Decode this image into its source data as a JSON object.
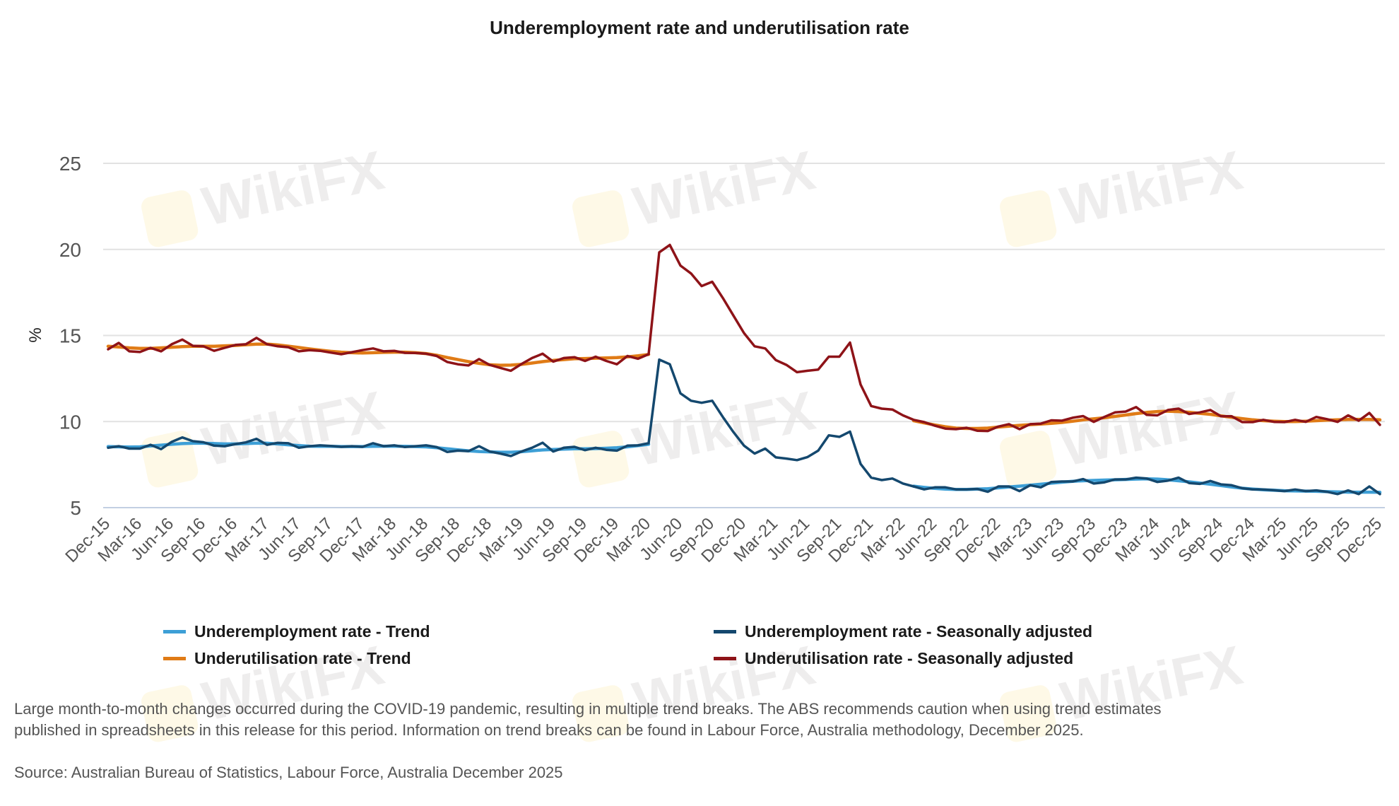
{
  "title": "Underemployment rate and underutilisation rate",
  "watermark": "WikiFX",
  "legend": [
    {
      "label": "Underemployment rate - Trend",
      "color": "#3d9fd6"
    },
    {
      "label": "Underemployment rate - Seasonally adjusted",
      "color": "#14486e"
    },
    {
      "label": "Underutilisation rate - Trend",
      "color": "#e07b16"
    },
    {
      "label": "Underutilisation rate - Seasonally adjusted",
      "color": "#8e1318"
    }
  ],
  "footnote": [
    "Large month-to-month changes occurred during the COVID-19 pandemic, resulting in multiple trend breaks. The ABS recommends caution when using trend estimates",
    "published in spreadsheets in this release for this period. Information on trend breaks can be found in Labour Force, Australia methodology, December 2025."
  ],
  "source": "Source: Australian Bureau of Statistics, Labour Force, Australia December 2025",
  "chart_data": {
    "type": "line",
    "title": "Underemployment rate and underutilisation rate",
    "xlabel": "",
    "ylabel": "%",
    "ylim": [
      5,
      25
    ],
    "yticks": [
      5,
      10,
      15,
      20,
      25
    ],
    "grid": true,
    "legend_position": "bottom",
    "x_tick_every": 3,
    "categories": [
      "Dec-15",
      "Jan-16",
      "Feb-16",
      "Mar-16",
      "Apr-16",
      "May-16",
      "Jun-16",
      "Jul-16",
      "Aug-16",
      "Sep-16",
      "Oct-16",
      "Nov-16",
      "Dec-16",
      "Jan-17",
      "Feb-17",
      "Mar-17",
      "Apr-17",
      "May-17",
      "Jun-17",
      "Jul-17",
      "Aug-17",
      "Sep-17",
      "Oct-17",
      "Nov-17",
      "Dec-17",
      "Jan-18",
      "Feb-18",
      "Mar-18",
      "Apr-18",
      "May-18",
      "Jun-18",
      "Jul-18",
      "Aug-18",
      "Sep-18",
      "Oct-18",
      "Nov-18",
      "Dec-18",
      "Jan-19",
      "Feb-19",
      "Mar-19",
      "Apr-19",
      "May-19",
      "Jun-19",
      "Jul-19",
      "Aug-19",
      "Sep-19",
      "Oct-19",
      "Nov-19",
      "Dec-19",
      "Jan-20",
      "Feb-20",
      "Mar-20",
      "Apr-20",
      "May-20",
      "Jun-20",
      "Jul-20",
      "Aug-20",
      "Sep-20",
      "Oct-20",
      "Nov-20",
      "Dec-20",
      "Jan-21",
      "Feb-21",
      "Mar-21",
      "Apr-21",
      "May-21",
      "Jun-21",
      "Jul-21",
      "Aug-21",
      "Sep-21",
      "Oct-21",
      "Nov-21",
      "Dec-21",
      "Jan-22",
      "Feb-22",
      "Mar-22",
      "Apr-22",
      "May-22",
      "Jun-22",
      "Jul-22",
      "Aug-22",
      "Sep-22",
      "Oct-22",
      "Nov-22",
      "Dec-22",
      "Jan-23",
      "Feb-23",
      "Mar-23",
      "Apr-23",
      "May-23",
      "Jun-23",
      "Jul-23",
      "Aug-23",
      "Sep-23",
      "Oct-23",
      "Nov-23",
      "Dec-23",
      "Jan-24",
      "Feb-24",
      "Mar-24",
      "Apr-24",
      "May-24",
      "Jun-24",
      "Jul-24",
      "Aug-24",
      "Sep-24",
      "Oct-24",
      "Nov-24",
      "Dec-24",
      "Jan-25",
      "Feb-25",
      "Mar-25",
      "Apr-25",
      "May-25",
      "Jun-25",
      "Jul-25",
      "Aug-25",
      "Sep-25",
      "Oct-25",
      "Nov-25",
      "Dec-25"
    ],
    "series": [
      {
        "name": "Underemployment rate - Trend",
        "color": "#3d9fd6",
        "values": [
          8.55,
          8.53,
          8.52,
          8.53,
          8.58,
          8.63,
          8.68,
          8.72,
          8.74,
          8.74,
          8.72,
          8.7,
          8.7,
          8.72,
          8.75,
          8.74,
          8.7,
          8.65,
          8.6,
          8.57,
          8.56,
          8.56,
          8.55,
          8.55,
          8.55,
          8.56,
          8.57,
          8.57,
          8.56,
          8.55,
          8.53,
          8.48,
          8.42,
          8.36,
          8.3,
          8.26,
          8.24,
          8.22,
          8.22,
          8.25,
          8.3,
          8.35,
          8.38,
          8.4,
          8.42,
          8.42,
          8.43,
          8.45,
          8.48,
          8.53,
          8.6,
          8.68,
          null,
          null,
          null,
          null,
          null,
          null,
          null,
          null,
          null,
          null,
          null,
          null,
          null,
          null,
          null,
          null,
          null,
          null,
          null,
          null,
          null,
          null,
          null,
          null,
          6.25,
          6.18,
          6.12,
          6.08,
          6.06,
          6.06,
          6.08,
          6.1,
          6.15,
          6.2,
          6.25,
          6.3,
          6.36,
          6.42,
          6.48,
          6.53,
          6.56,
          6.58,
          6.6,
          6.62,
          6.64,
          6.66,
          6.67,
          6.66,
          6.62,
          6.56,
          6.5,
          6.43,
          6.36,
          6.28,
          6.2,
          6.13,
          6.08,
          6.04,
          6.01,
          5.98,
          5.97,
          5.96,
          5.95,
          5.93,
          5.91,
          5.9,
          5.9,
          5.9,
          5.89
        ]
      },
      {
        "name": "Underutilisation rate - Trend",
        "color": "#e07b16",
        "values": [
          14.37,
          14.33,
          14.28,
          14.25,
          14.25,
          14.28,
          14.32,
          14.35,
          14.37,
          14.37,
          14.37,
          14.4,
          14.42,
          14.46,
          14.5,
          14.5,
          14.45,
          14.38,
          14.3,
          14.22,
          14.15,
          14.08,
          14.03,
          14.0,
          13.98,
          14.0,
          14.02,
          14.03,
          14.03,
          14.0,
          13.95,
          13.85,
          13.72,
          13.6,
          13.48,
          13.38,
          13.3,
          13.27,
          13.28,
          13.32,
          13.4,
          13.48,
          13.55,
          13.6,
          13.65,
          13.66,
          13.68,
          13.7,
          13.72,
          13.76,
          13.82,
          13.9,
          null,
          null,
          null,
          null,
          null,
          null,
          null,
          null,
          null,
          null,
          null,
          null,
          null,
          null,
          null,
          null,
          null,
          null,
          null,
          null,
          null,
          null,
          null,
          null,
          10.05,
          9.92,
          9.8,
          9.7,
          9.62,
          9.6,
          9.6,
          9.62,
          9.68,
          9.73,
          9.78,
          9.82,
          9.86,
          9.9,
          9.95,
          10.02,
          10.1,
          10.16,
          10.22,
          10.3,
          10.38,
          10.46,
          10.53,
          10.58,
          10.6,
          10.58,
          10.54,
          10.48,
          10.42,
          10.33,
          10.25,
          10.17,
          10.1,
          10.05,
          10.02,
          10.0,
          10.0,
          10.02,
          10.05,
          10.08,
          10.1,
          10.12,
          10.13,
          10.12,
          10.1
        ]
      },
      {
        "name": "Underemployment rate - Seasonally adjusted",
        "color": "#14486e",
        "values": [
          8.48,
          8.57,
          8.43,
          8.43,
          8.65,
          8.4,
          8.82,
          9.08,
          8.86,
          8.8,
          8.6,
          8.57,
          8.69,
          8.79,
          9.0,
          8.65,
          8.76,
          8.74,
          8.48,
          8.57,
          8.62,
          8.58,
          8.53,
          8.57,
          8.53,
          8.74,
          8.57,
          8.62,
          8.52,
          8.57,
          8.62,
          8.52,
          8.23,
          8.31,
          8.28,
          8.57,
          8.26,
          8.14,
          8.0,
          8.26,
          8.48,
          8.77,
          8.26,
          8.48,
          8.53,
          8.34,
          8.48,
          8.36,
          8.31,
          8.6,
          8.62,
          8.74,
          13.6,
          13.33,
          11.64,
          11.21,
          11.09,
          11.21,
          10.27,
          9.39,
          8.6,
          8.14,
          8.43,
          7.92,
          7.85,
          7.76,
          7.94,
          8.31,
          9.2,
          9.11,
          9.42,
          7.54,
          6.74,
          6.6,
          6.69,
          6.4,
          6.23,
          6.06,
          6.18,
          6.18,
          6.06,
          6.06,
          6.09,
          5.92,
          6.23,
          6.23,
          5.96,
          6.3,
          6.18,
          6.49,
          6.52,
          6.52,
          6.66,
          6.4,
          6.47,
          6.64,
          6.64,
          6.74,
          6.69,
          6.49,
          6.57,
          6.74,
          6.43,
          6.38,
          6.55,
          6.35,
          6.3,
          6.13,
          6.06,
          6.05,
          6.01,
          5.96,
          6.05,
          5.96,
          6.0,
          5.92,
          5.79,
          6.0,
          5.79,
          6.23,
          5.79
        ]
      },
      {
        "name": "Underutilisation rate - Seasonally adjusted",
        "color": "#8e1318",
        "values": [
          14.2,
          14.57,
          14.08,
          14.04,
          14.28,
          14.08,
          14.49,
          14.76,
          14.4,
          14.37,
          14.11,
          14.28,
          14.45,
          14.49,
          14.86,
          14.49,
          14.37,
          14.32,
          14.08,
          14.15,
          14.11,
          14.01,
          13.91,
          14.03,
          14.15,
          14.25,
          14.08,
          14.11,
          13.99,
          13.98,
          13.94,
          13.81,
          13.46,
          13.33,
          13.26,
          13.63,
          13.29,
          13.12,
          12.95,
          13.34,
          13.69,
          13.94,
          13.48,
          13.69,
          13.74,
          13.52,
          13.77,
          13.52,
          13.33,
          13.81,
          13.65,
          13.91,
          19.83,
          20.26,
          19.06,
          18.6,
          17.87,
          18.12,
          17.18,
          16.16,
          15.14,
          14.37,
          14.25,
          13.57,
          13.29,
          12.87,
          12.95,
          13.02,
          13.77,
          13.77,
          14.59,
          12.15,
          10.9,
          10.75,
          10.7,
          10.36,
          10.1,
          9.97,
          9.76,
          9.59,
          9.56,
          9.64,
          9.47,
          9.45,
          9.71,
          9.85,
          9.56,
          9.85,
          9.88,
          10.07,
          10.05,
          10.22,
          10.32,
          9.98,
          10.27,
          10.53,
          10.58,
          10.84,
          10.39,
          10.36,
          10.67,
          10.75,
          10.44,
          10.53,
          10.67,
          10.31,
          10.31,
          9.97,
          9.97,
          10.1,
          9.98,
          9.97,
          10.1,
          9.98,
          10.27,
          10.14,
          9.98,
          10.36,
          10.05,
          10.5,
          9.81
        ]
      }
    ]
  }
}
